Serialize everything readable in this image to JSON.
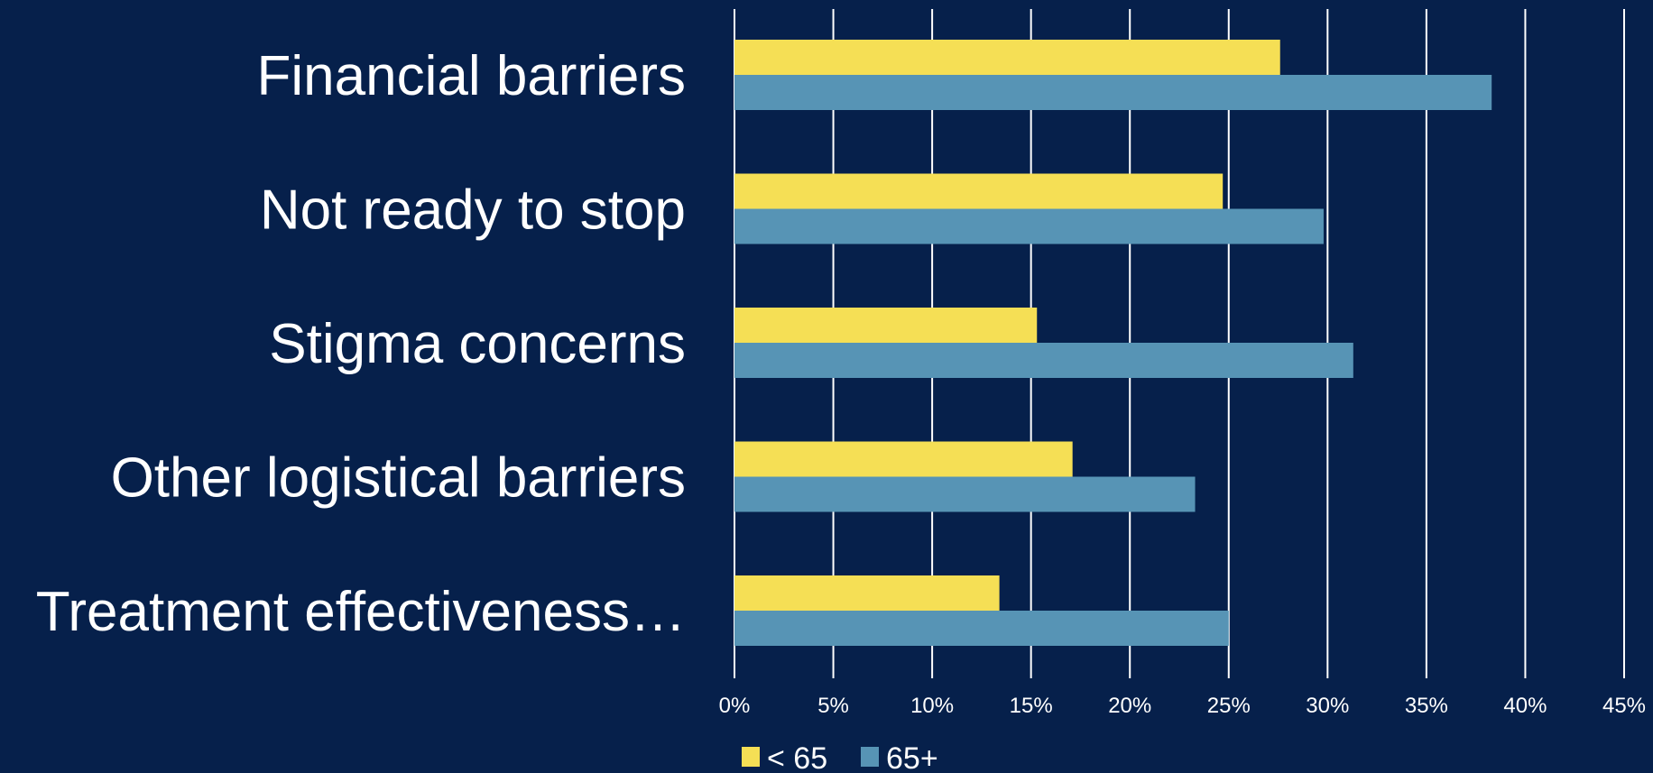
{
  "chart_data": {
    "type": "bar",
    "orientation": "horizontal",
    "categories": [
      "Financial barriers",
      "Not ready to stop",
      "Stigma concerns",
      "Other logistical barriers",
      "Treatment effectiveness…"
    ],
    "series": [
      {
        "name": "< 65",
        "color": "#f5df55",
        "values": [
          27.6,
          24.7,
          15.3,
          17.1,
          13.4
        ]
      },
      {
        "name": "65+",
        "color": "#5794b5",
        "values": [
          38.3,
          29.8,
          31.3,
          23.3,
          25.0
        ]
      }
    ],
    "xlim": [
      0,
      45
    ],
    "x_ticks": [
      0,
      5,
      10,
      15,
      20,
      25,
      30,
      35,
      40,
      45
    ],
    "x_tick_labels": [
      "0%",
      "5%",
      "10%",
      "15%",
      "20%",
      "25%",
      "30%",
      "35%",
      "40%",
      "45%"
    ],
    "grid": "vertical",
    "legend_position": "bottom",
    "colors": {
      "background": "#06204b",
      "grid": "#ffffff",
      "text": "#ffffff"
    }
  }
}
